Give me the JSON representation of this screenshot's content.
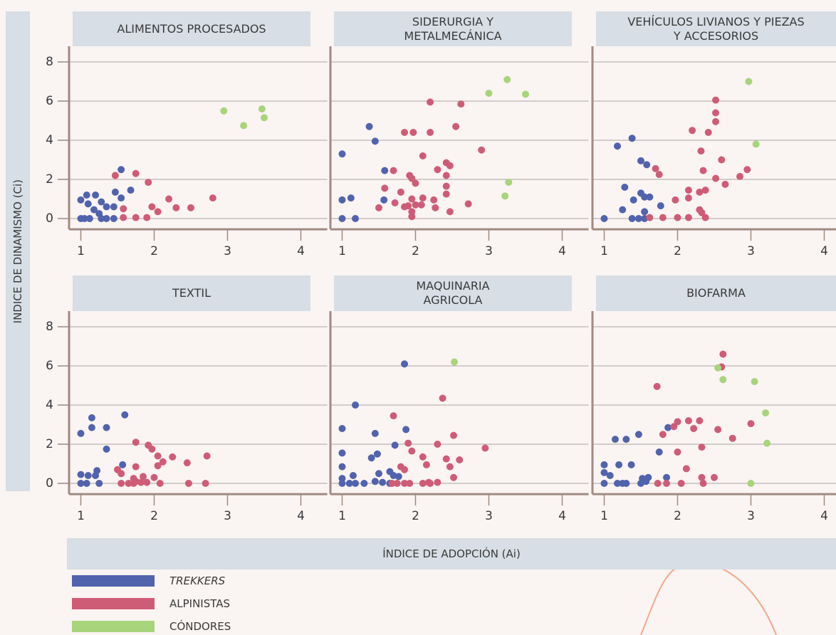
{
  "chart_data": {
    "type": "scatter",
    "ylabel": "INDICE DE DINAMISMO (Ci)",
    "xlabel": "ÍNDICE DE ADOPCIÓN (Ai)",
    "xlim": [
      0.84,
      4.36
    ],
    "ylim": [
      -0.55,
      8.8
    ],
    "xticks": [
      1,
      2,
      3,
      4
    ],
    "yticks": [
      0,
      2,
      4,
      6,
      8
    ],
    "grid": true,
    "series": [
      {
        "name": "TREKKERS",
        "color": "#5163ad"
      },
      {
        "name": "ALPINISTAS",
        "color": "#cf5c77"
      },
      {
        "name": "CÓNDORES",
        "color": "#a8d47b"
      }
    ],
    "panels": [
      {
        "title": "ALIMENTOS PROCESADOS",
        "series": [
          {
            "x": [
              1.0,
              1.08,
              1.2,
              1.1,
              1.18,
              1.28,
              1.35,
              1.45,
              1.47,
              1.55,
              1.55,
              1.68,
              1.25,
              1.0,
              1.05,
              1.12,
              1.28,
              1.35,
              1.45
            ],
            "y": [
              0.95,
              1.2,
              1.2,
              0.75,
              0.45,
              0.85,
              0.6,
              0.6,
              1.35,
              2.5,
              1.05,
              1.45,
              0.25,
              0,
              0,
              0,
              0,
              0,
              0
            ]
          },
          {
            "x": [
              1.47,
              1.75,
              1.92,
              1.58,
              1.58,
              1.75,
              1.9,
              1.97,
              2.05,
              2.2,
              2.3,
              2.5,
              2.8
            ],
            "y": [
              2.2,
              2.3,
              1.85,
              0.5,
              0.05,
              0.05,
              0.05,
              0.6,
              0.35,
              1.0,
              0.55,
              0.55,
              1.05
            ]
          },
          {
            "x": [
              2.95,
              3.22,
              3.47,
              3.5
            ],
            "y": [
              5.5,
              4.75,
              5.6,
              5.15
            ]
          }
        ]
      },
      {
        "title": "SIDERURGIA Y\nMETALMECÁNICA",
        "series": [
          {
            "x": [
              1.0,
              1.37,
              1.45,
              1.58,
              1.57,
              1.0,
              1.12,
              1.0,
              1.18
            ],
            "y": [
              3.3,
              4.7,
              3.95,
              2.45,
              0.95,
              0.95,
              1.05,
              0,
              0
            ]
          },
          {
            "x": [
              2.2,
              2.62,
              2.55,
              1.85,
              1.97,
              2.2,
              2.1,
              2.9,
              1.7,
              1.92,
              1.95,
              2.0,
              2.3,
              2.42,
              2.47,
              2.42,
              1.58,
              1.8,
              1.95,
              2.1,
              2.25,
              2.42,
              2.42,
              1.5,
              1.72,
              1.85,
              1.95,
              1.95,
              2.0,
              2.08,
              2.27,
              2.47,
              2.72,
              1.9
            ],
            "y": [
              5.95,
              5.85,
              4.7,
              4.4,
              4.4,
              4.4,
              3.2,
              3.5,
              2.45,
              2.2,
              2.05,
              1.8,
              2.5,
              2.85,
              2.7,
              2.2,
              1.55,
              1.35,
              1.0,
              1.05,
              0.95,
              1.65,
              1.25,
              0.55,
              0.8,
              0.6,
              0.35,
              0.1,
              0.7,
              0.7,
              0.55,
              0.35,
              0.75,
              0.65
            ]
          },
          {
            "x": [
              3.0,
              3.25,
              3.5,
              3.27,
              3.22
            ],
            "y": [
              6.4,
              7.1,
              6.35,
              1.85,
              1.15
            ]
          }
        ]
      },
      {
        "title": "VEHÍCULOS LIVIANOS Y PIEZAS\nY ACCESORIOS",
        "series": [
          {
            "x": [
              1.0,
              1.18,
              1.38,
              1.5,
              1.58,
              1.28,
              1.5,
              1.55,
              1.62,
              1.25,
              1.4,
              1.55,
              1.38,
              1.47,
              1.55,
              1.77
            ],
            "y": [
              0,
              3.7,
              4.1,
              2.95,
              2.75,
              1.6,
              1.3,
              1.1,
              1.1,
              0.45,
              0.95,
              0.35,
              0,
              0,
              0,
              0.65
            ]
          },
          {
            "x": [
              2.52,
              2.52,
              2.52,
              2.2,
              2.42,
              2.32,
              2.6,
              1.7,
              1.75,
              2.35,
              2.52,
              2.65,
              2.85,
              2.95,
              2.15,
              2.15,
              2.3,
              2.38,
              1.97,
              1.62,
              1.8,
              2.0,
              2.15,
              2.3,
              2.33,
              2.38
            ],
            "y": [
              6.05,
              5.4,
              4.95,
              4.5,
              4.4,
              3.45,
              3.0,
              2.55,
              2.25,
              2.45,
              2.05,
              1.75,
              2.15,
              2.5,
              1.45,
              1.05,
              1.35,
              1.45,
              0.95,
              0.05,
              0.05,
              0.05,
              0.05,
              0.45,
              0.3,
              0.05
            ]
          },
          {
            "x": [
              2.97,
              3.07
            ],
            "y": [
              7.0,
              3.8
            ]
          }
        ]
      },
      {
        "title": "TEXTIL",
        "series": [
          {
            "x": [
              1.0,
              1.15,
              1.15,
              1.35,
              1.6,
              1.35,
              1.57,
              1.0,
              1.1,
              1.2,
              1.22,
              1.0,
              1.08,
              1.25
            ],
            "y": [
              2.55,
              3.35,
              2.85,
              2.85,
              3.5,
              1.75,
              0.95,
              0.45,
              0.4,
              0.4,
              0.65,
              0,
              0,
              0
            ]
          },
          {
            "x": [
              1.75,
              1.92,
              1.97,
              2.05,
              2.12,
              2.25,
              2.45,
              2.72,
              1.5,
              1.55,
              1.75,
              2.05,
              1.72,
              1.85,
              2.0,
              1.55,
              1.65,
              1.72,
              1.75,
              1.82,
              1.9,
              2.08,
              2.47,
              2.7
            ],
            "y": [
              2.1,
              1.95,
              1.75,
              1.4,
              1.1,
              1.35,
              1.05,
              1.4,
              0.7,
              0.5,
              0.85,
              0.9,
              0.25,
              0.35,
              0.3,
              0,
              0,
              0,
              0.1,
              0.05,
              0.05,
              0,
              0,
              0
            ]
          }
        ]
      },
      {
        "title": "MAQUINARIA\nAGRICOLA",
        "series": [
          {
            "x": [
              1.85,
              1.18,
              1.0,
              1.45,
              1.87,
              1.72,
              1.0,
              1.4,
              1.48,
              1.0,
              1.5,
              1.65,
              1.7,
              1.0,
              1.15,
              1.0,
              1.1,
              1.18,
              1.3,
              1.45,
              1.55,
              1.65,
              1.77
            ],
            "y": [
              6.1,
              4.0,
              2.8,
              2.55,
              2.75,
              1.95,
              1.55,
              1.3,
              1.5,
              0.85,
              0.5,
              0.6,
              0.4,
              0.25,
              0.4,
              0,
              0,
              0,
              0,
              0.1,
              0.05,
              0,
              0.35
            ]
          },
          {
            "x": [
              2.37,
              1.7,
              2.52,
              2.95,
              1.9,
              2.3,
              1.95,
              2.1,
              2.42,
              2.6,
              2.15,
              2.47,
              1.8,
              1.85,
              2.52,
              1.68,
              1.75,
              1.85,
              1.92,
              2.1,
              2.18,
              2.2,
              2.3
            ],
            "y": [
              4.35,
              3.45,
              2.45,
              1.8,
              2.05,
              2.0,
              1.65,
              1.35,
              1.25,
              1.2,
              0.95,
              0.85,
              0.85,
              0.7,
              0.3,
              0,
              0,
              0,
              0,
              0,
              0.05,
              0,
              0.05
            ]
          },
          {
            "x": [
              2.53
            ],
            "y": [
              6.2
            ]
          }
        ]
      },
      {
        "title": "BIOFARMA",
        "series": [
          {
            "x": [
              1.0,
              1.0,
              1.08,
              1.0,
              1.15,
              1.2,
              1.3,
              1.37,
              1.47,
              1.75,
              1.87,
              1.18,
              1.25,
              1.3,
              1.5,
              1.52,
              1.57,
              1.6,
              1.85
            ],
            "y": [
              0.95,
              0.55,
              0.4,
              0,
              2.25,
              0.95,
              2.25,
              0.95,
              2.5,
              1.6,
              2.85,
              0,
              0,
              0,
              0,
              0.25,
              0.1,
              0.3,
              0.3
            ]
          },
          {
            "x": [
              2.62,
              2.6,
              1.72,
              2.0,
              2.15,
              2.3,
              1.95,
              2.22,
              2.55,
              2.75,
              3.0,
              1.8,
              2.0,
              2.33,
              2.12,
              2.33,
              2.5,
              1.73,
              1.85,
              2.05,
              2.35
            ],
            "y": [
              6.6,
              5.95,
              4.95,
              3.15,
              3.2,
              3.2,
              2.9,
              2.8,
              2.75,
              2.3,
              3.05,
              2.5,
              1.6,
              1.85,
              0.75,
              0.3,
              0.3,
              0,
              0,
              0,
              0
            ]
          },
          {
            "x": [
              2.55,
              2.62,
              3.05,
              3.2,
              3.22,
              3.0
            ],
            "y": [
              5.9,
              5.3,
              5.2,
              3.6,
              2.05,
              0
            ]
          }
        ]
      }
    ]
  }
}
